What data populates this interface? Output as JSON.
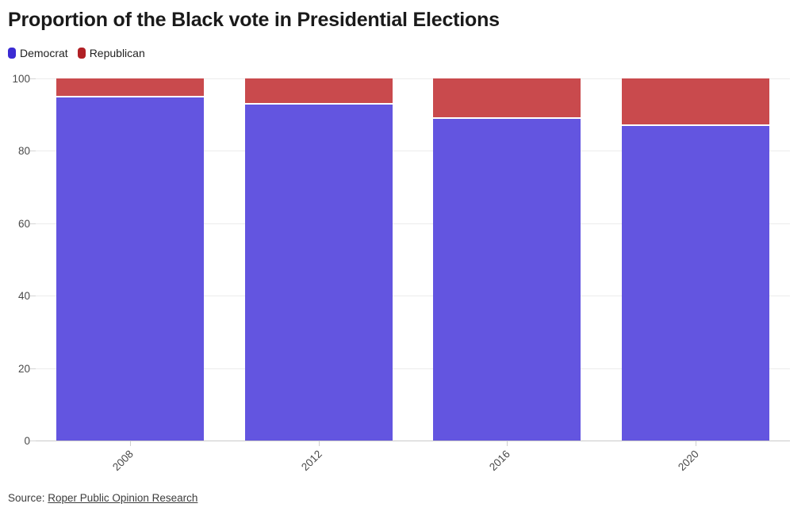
{
  "title": "Proportion of the Black vote in Presidential Elections",
  "legend": {
    "items": [
      {
        "label": "Democrat",
        "color": "#3b2bd3"
      },
      {
        "label": "Republican",
        "color": "#b12025"
      }
    ]
  },
  "source": {
    "label": "Source: ",
    "link_text": "Roper Public Opinion Research"
  },
  "colors": {
    "democrat_bar": "#6355e0",
    "republican_bar": "#c94a4d",
    "grid": "#ebebeb",
    "axis_line": "#c9c9c9",
    "tick_text": "#4a4a4a",
    "background": "#ffffff"
  },
  "chart_data": {
    "type": "bar",
    "stacked": true,
    "title": "Proportion of the Black vote in Presidential Elections",
    "categories": [
      "2008",
      "2012",
      "2016",
      "2020"
    ],
    "series": [
      {
        "name": "Democrat",
        "color": "#6355e0",
        "values": [
          95,
          93,
          89,
          87
        ]
      },
      {
        "name": "Republican",
        "color": "#c94a4d",
        "values": [
          5,
          7,
          11,
          13
        ]
      }
    ],
    "ylim": [
      0,
      100
    ],
    "yticks": [
      0,
      20,
      40,
      60,
      80,
      100
    ],
    "grid": true,
    "legend_position": "top-left",
    "xlabel": "",
    "ylabel": "",
    "source": "Roper Public Opinion Research"
  }
}
